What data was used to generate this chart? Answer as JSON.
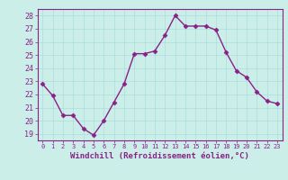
{
  "x": [
    0,
    1,
    2,
    3,
    4,
    5,
    6,
    7,
    8,
    9,
    10,
    11,
    12,
    13,
    14,
    15,
    16,
    17,
    18,
    19,
    20,
    21,
    22,
    23
  ],
  "y": [
    22.8,
    21.9,
    20.4,
    20.4,
    19.4,
    18.9,
    20.0,
    21.4,
    22.8,
    25.1,
    25.1,
    25.3,
    26.5,
    28.0,
    27.2,
    27.2,
    27.2,
    26.9,
    25.2,
    23.8,
    23.3,
    22.2,
    21.5,
    21.3
  ],
  "line_color": "#882288",
  "marker": "D",
  "marker_size": 2.5,
  "linewidth": 1.0,
  "xlabel": "Windchill (Refroidissement éolien,°C)",
  "ylim": [
    18.5,
    28.5
  ],
  "yticks": [
    19,
    20,
    21,
    22,
    23,
    24,
    25,
    26,
    27,
    28
  ],
  "xlim": [
    -0.5,
    23.5
  ],
  "xticks": [
    0,
    1,
    2,
    3,
    4,
    5,
    6,
    7,
    8,
    9,
    10,
    11,
    12,
    13,
    14,
    15,
    16,
    17,
    18,
    19,
    20,
    21,
    22,
    23
  ],
  "grid_color": "#aadddd",
  "background_color": "#cceee8",
  "tick_color": "#882288",
  "font_family": "monospace"
}
